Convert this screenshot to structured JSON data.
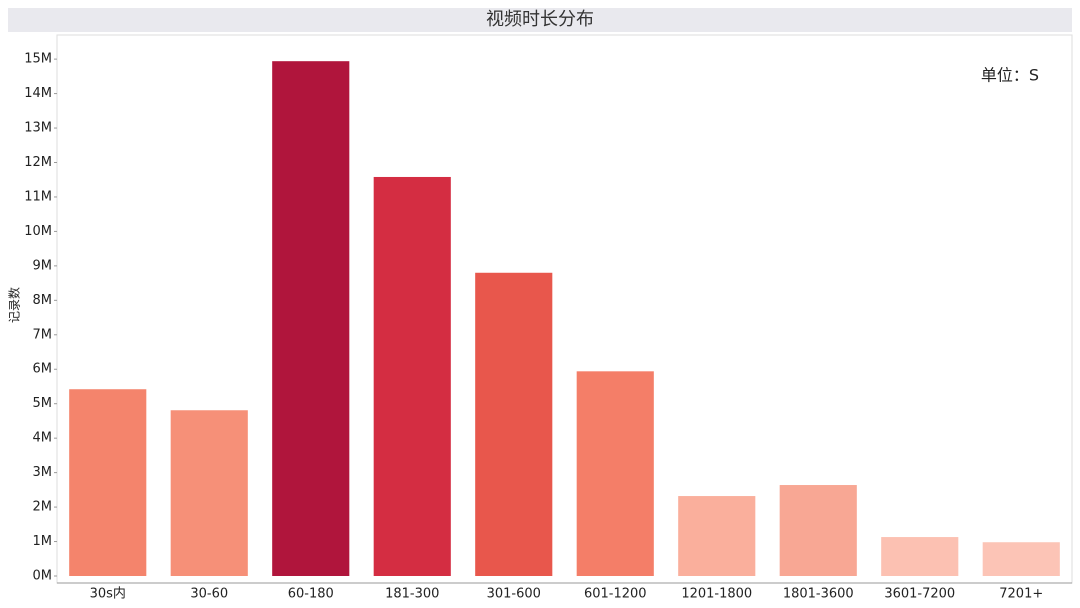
{
  "chart_data": {
    "type": "bar",
    "title": "视频时长分布",
    "y_label": "记录数",
    "annotation": "单位：S",
    "categories": [
      "30s内",
      "30-60",
      "60-180",
      "181-300",
      "301-600",
      "601-1200",
      "1201-1800",
      "1801-3600",
      "3601-7200",
      "7201+"
    ],
    "values": [
      5.42,
      4.81,
      14.94,
      11.58,
      8.8,
      5.94,
      2.32,
      2.64,
      1.13,
      0.98
    ],
    "colors": [
      "#f4846c",
      "#f69078",
      "#b0153c",
      "#d42d42",
      "#e8574c",
      "#f47e68",
      "#faaf9c",
      "#f8a794",
      "#fcc1b2",
      "#fcc4b6"
    ],
    "ylim": [
      0,
      15.7
    ],
    "yticks": [
      {
        "value": 0,
        "label": "0M"
      },
      {
        "value": 1,
        "label": "1M"
      },
      {
        "value": 2,
        "label": "2M"
      },
      {
        "value": 3,
        "label": "3M"
      },
      {
        "value": 4,
        "label": "4M"
      },
      {
        "value": 5,
        "label": "5M"
      },
      {
        "value": 6,
        "label": "6M"
      },
      {
        "value": 7,
        "label": "7M"
      },
      {
        "value": 8,
        "label": "8M"
      },
      {
        "value": 9,
        "label": "9M"
      },
      {
        "value": 10,
        "label": "10M"
      },
      {
        "value": 11,
        "label": "11M"
      },
      {
        "value": 12,
        "label": "12M"
      },
      {
        "value": 13,
        "label": "13M"
      },
      {
        "value": 14,
        "label": "14M"
      },
      {
        "value": 15,
        "label": "15M"
      }
    ],
    "grid": false
  }
}
